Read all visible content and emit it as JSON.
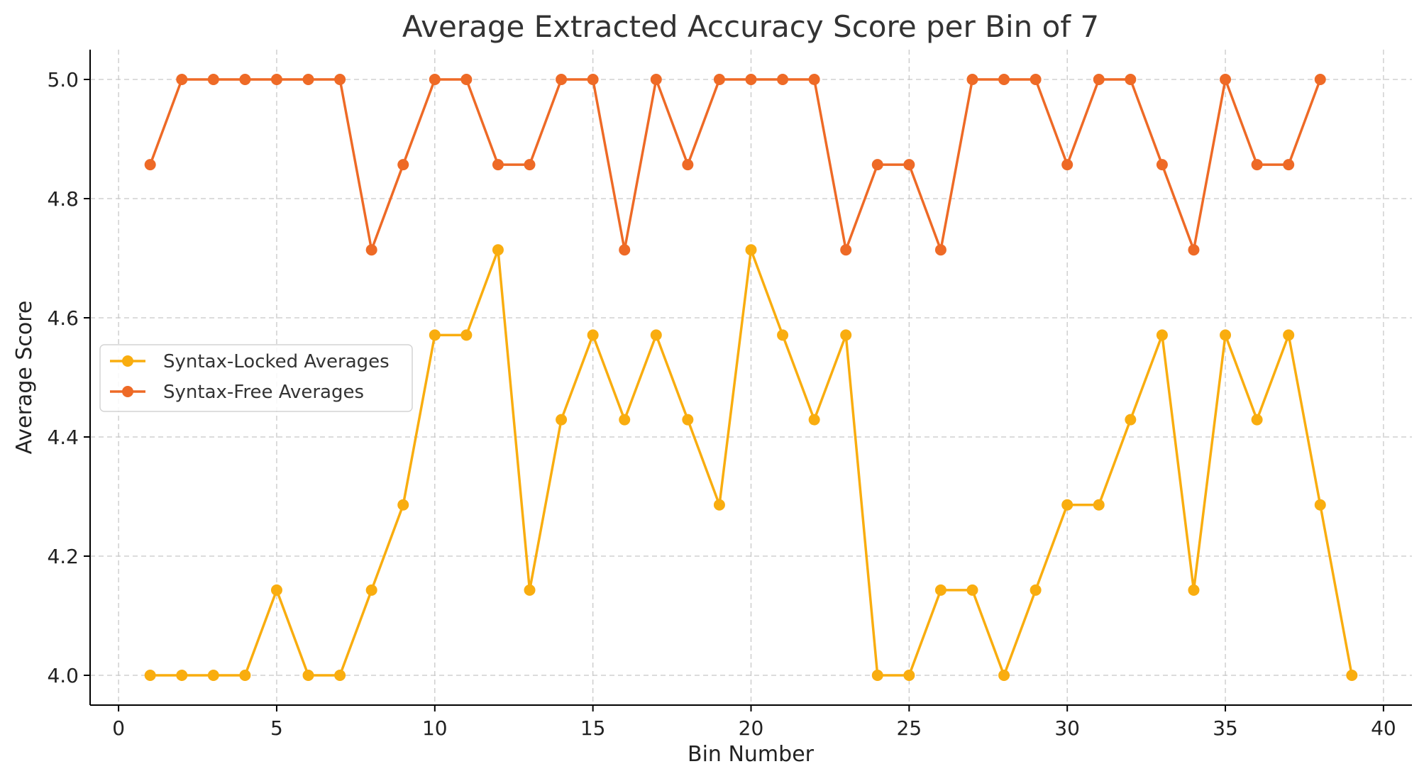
{
  "chart_data": {
    "type": "line",
    "title": "Average Extracted Accuracy Score per Bin of 7",
    "xlabel": "Bin Number",
    "ylabel": "Average Score",
    "xlim": [
      -0.9,
      40.9
    ],
    "ylim": [
      3.95,
      5.05
    ],
    "xticks": [
      0,
      5,
      10,
      15,
      20,
      25,
      30,
      35,
      40
    ],
    "yticks": [
      "4.0",
      "4.2",
      "4.4",
      "4.6",
      "4.8",
      "5.0"
    ],
    "grid": true,
    "legend_position": "center-left",
    "series": [
      {
        "name": "Syntax-Locked Averages",
        "color": "#F9AD0F",
        "x": [
          1,
          2,
          3,
          4,
          5,
          6,
          7,
          8,
          9,
          10,
          11,
          12,
          13,
          14,
          15,
          16,
          17,
          18,
          19,
          20,
          21,
          22,
          23,
          24,
          25,
          26,
          27,
          28,
          29,
          30,
          31,
          32,
          33,
          34,
          35,
          36,
          37,
          38,
          39
        ],
        "values": [
          4.0,
          4.0,
          4.0,
          4.0,
          4.143,
          4.0,
          4.0,
          4.143,
          4.286,
          4.571,
          4.571,
          4.714,
          4.143,
          4.429,
          4.571,
          4.429,
          4.571,
          4.429,
          4.286,
          4.714,
          4.571,
          4.429,
          4.571,
          4.0,
          4.0,
          4.143,
          4.143,
          4.0,
          4.143,
          4.286,
          4.286,
          4.429,
          4.571,
          4.143,
          4.571,
          4.429,
          4.571,
          4.286,
          4.0
        ]
      },
      {
        "name": "Syntax-Free Averages",
        "color": "#EE6A26",
        "x": [
          1,
          2,
          3,
          4,
          5,
          6,
          7,
          8,
          9,
          10,
          11,
          12,
          13,
          14,
          15,
          16,
          17,
          18,
          19,
          20,
          21,
          22,
          23,
          24,
          25,
          26,
          27,
          28,
          29,
          30,
          31,
          32,
          33,
          34,
          35,
          36,
          37,
          38
        ],
        "values": [
          4.857,
          5.0,
          5.0,
          5.0,
          5.0,
          5.0,
          5.0,
          4.714,
          4.857,
          5.0,
          5.0,
          4.857,
          4.857,
          5.0,
          5.0,
          4.714,
          5.0,
          4.857,
          5.0,
          5.0,
          5.0,
          5.0,
          4.714,
          4.857,
          4.857,
          4.714,
          5.0,
          5.0,
          5.0,
          4.857,
          5.0,
          5.0,
          4.857,
          4.714,
          5.0,
          4.857,
          4.857,
          5.0
        ]
      }
    ]
  }
}
